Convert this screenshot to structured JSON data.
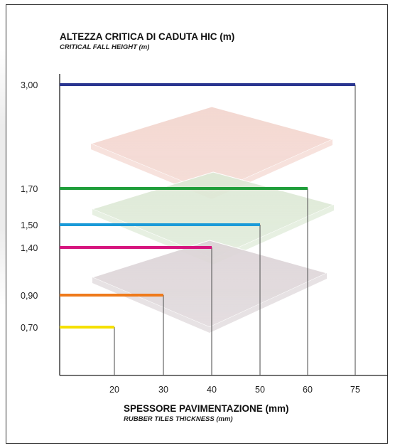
{
  "chart_data": {
    "type": "bar",
    "orientation": "step",
    "title": "ALTEZZA CRITICA DI CADUTA HIC (m)",
    "subtitle": "CRITICAL FALL HEIGHT (m)",
    "xlabel": "SPESSORE PAVIMENTAZIONE (mm)",
    "xlabel_sub": "RUBBER TILES THICKNESS (mm)",
    "ylabel": "",
    "x_ticks": [
      "20",
      "30",
      "40",
      "50",
      "60",
      "75"
    ],
    "y_ticks": [
      "0,70",
      "0,90",
      "1,40",
      "1,50",
      "1,70",
      "3,00"
    ],
    "points": [
      {
        "x": 20,
        "y": 0.7,
        "x_label": "20",
        "y_label": "0,70",
        "color": "#f5e000"
      },
      {
        "x": 30,
        "y": 0.9,
        "x_label": "30",
        "y_label": "0,90",
        "color": "#ef7a1a"
      },
      {
        "x": 40,
        "y": 1.4,
        "x_label": "40",
        "y_label": "1,40",
        "color": "#d6157e"
      },
      {
        "x": 50,
        "y": 1.5,
        "x_label": "50",
        "y_label": "1,50",
        "color": "#1a9ad8"
      },
      {
        "x": 60,
        "y": 1.7,
        "x_label": "60",
        "y_label": "1,70",
        "color": "#1f9e3a"
      },
      {
        "x": 75,
        "y": 3.0,
        "x_label": "75",
        "y_label": "3,00",
        "color": "#2a3590"
      }
    ],
    "tiles": [
      {
        "name": "pink-tile",
        "color": "#f3d6cf"
      },
      {
        "name": "green-tile",
        "color": "#dde9d6"
      },
      {
        "name": "grey-tile",
        "color": "#ddd5d8"
      }
    ]
  }
}
